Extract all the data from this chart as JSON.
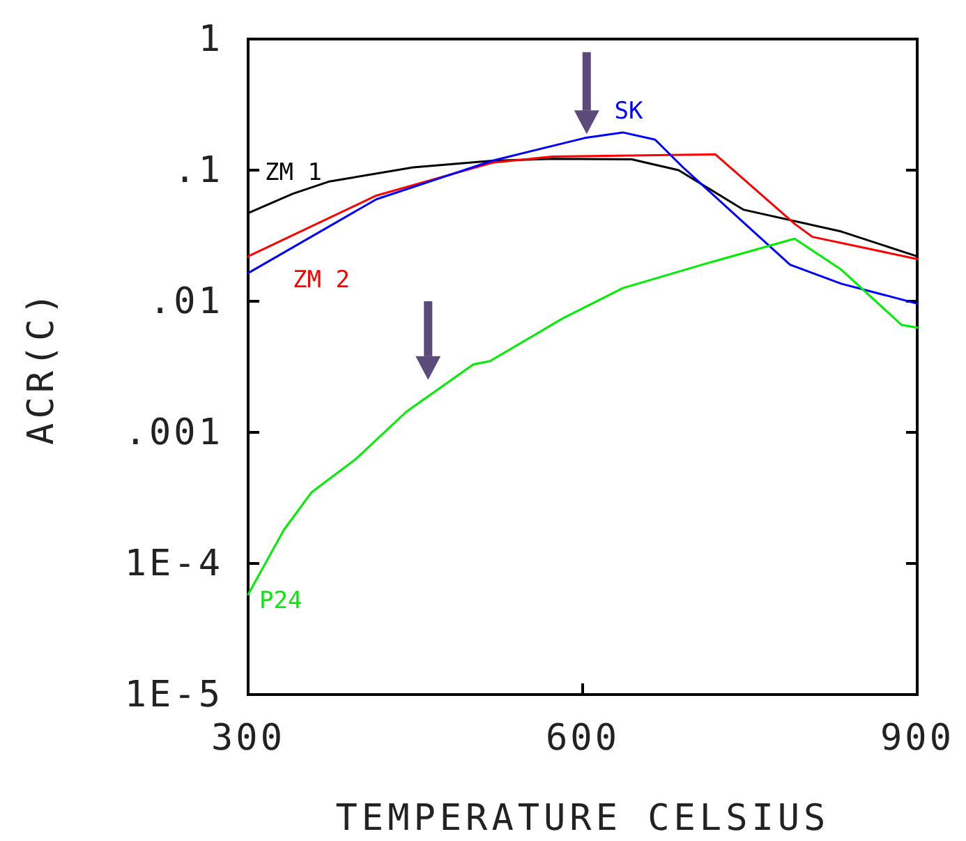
{
  "chart_data": {
    "type": "line",
    "xlabel": "TEMPERATURE CELSIUS",
    "ylabel": "ACR(C)",
    "log": "y",
    "grid": false,
    "legend": false,
    "marker": "none",
    "line_style": "solid",
    "xlim": [
      300,
      900
    ],
    "xticks": [
      300,
      600,
      900
    ],
    "ylim": [
      1e-05,
      1
    ],
    "yticks": [
      {
        "value": 1e-05,
        "label": "1E-5"
      },
      {
        "value": 0.0001,
        "label": "1E-4"
      },
      {
        "value": 0.001,
        "label": ".001"
      },
      {
        "value": 0.01,
        "label": ".01"
      },
      {
        "value": 0.1,
        "label": ".1"
      },
      {
        "value": 1,
        "label": "1"
      }
    ],
    "series": [
      {
        "name": "ZM 1",
        "color": "#000000",
        "x": [
          300,
          340,
          373,
          448,
          519,
          573,
          644,
          686,
          744,
          832,
          900
        ],
        "values": [
          0.047,
          0.066,
          0.082,
          0.105,
          0.118,
          0.122,
          0.121,
          0.1,
          0.05,
          0.034,
          0.022
        ]
      },
      {
        "name": "ZM 2",
        "color": "#ff0000",
        "x": [
          300,
          415,
          519,
          573,
          719,
          790,
          806,
          900
        ],
        "values": [
          0.022,
          0.064,
          0.114,
          0.127,
          0.132,
          0.039,
          0.031,
          0.021
        ]
      },
      {
        "name": "SK",
        "color": "#0000ff",
        "x": [
          300,
          415,
          519,
          602,
          636,
          665,
          690,
          740,
          786,
          832,
          900
        ],
        "values": [
          0.0164,
          0.06,
          0.118,
          0.176,
          0.194,
          0.171,
          0.105,
          0.043,
          0.019,
          0.0136,
          0.0096
        ]
      },
      {
        "name": "P24",
        "color": "#00ee00",
        "x": [
          300,
          332,
          357,
          396,
          442,
          502,
          517,
          582,
          636,
          707,
          790,
          832,
          886,
          900
        ],
        "values": [
          5.8e-05,
          0.00018,
          0.00035,
          0.00062,
          0.00144,
          0.0033,
          0.0035,
          0.0074,
          0.0126,
          0.019,
          0.03,
          0.0174,
          0.0066,
          0.0063
        ]
      }
    ]
  }
}
